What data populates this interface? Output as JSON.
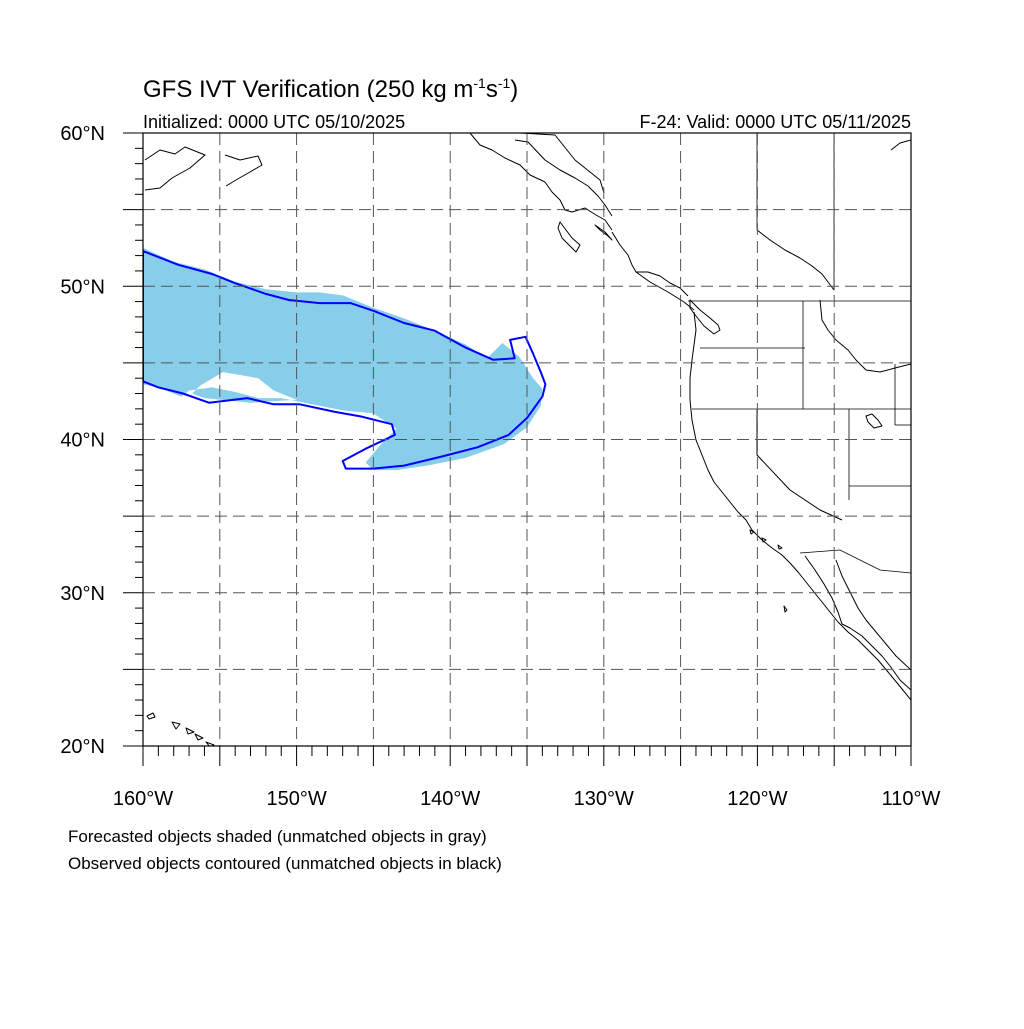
{
  "title": "GFS IVT Verification (250 kg m",
  "title_sup1": "-1",
  "title_mid": "s",
  "title_sup2": "-1",
  "title_end": ")",
  "initialized": "Initialized: 0000 UTC 05/10/2025",
  "valid": "F-24: Valid: 0000 UTC 05/11/2025",
  "footnote_1": "Forecasted objects shaded (unmatched objects in gray)",
  "footnote_2": "Observed objects contoured (unmatched objects in black)",
  "colors": {
    "forecast_shade": "#87ceeb",
    "observed_contour": "#0000ff",
    "coast": "#000000",
    "grid": "#555555"
  },
  "chart_data": {
    "type": "map",
    "projection": "lat-lon",
    "lon_range": [
      -160,
      -110
    ],
    "lat_range": [
      20,
      60
    ],
    "lon_ticks": [
      {
        "value": -160,
        "label": "160°W"
      },
      {
        "value": -150,
        "label": "150°W"
      },
      {
        "value": -140,
        "label": "140°W"
      },
      {
        "value": -130,
        "label": "130°W"
      },
      {
        "value": -120,
        "label": "120°W"
      },
      {
        "value": -110,
        "label": "110°W"
      }
    ],
    "lat_ticks": [
      {
        "value": 20,
        "label": "20°N"
      },
      {
        "value": 30,
        "label": "30°N"
      },
      {
        "value": 40,
        "label": "40°N"
      },
      {
        "value": 50,
        "label": "50°N"
      },
      {
        "value": 60,
        "label": "60°N"
      }
    ],
    "grid_spacing_deg": 5,
    "forecast_object": [
      [
        -160,
        52.5
      ],
      [
        -158,
        51.6
      ],
      [
        -156,
        51.1
      ],
      [
        -154,
        50.3
      ],
      [
        -152,
        49.8
      ],
      [
        -150,
        49.6
      ],
      [
        -148.5,
        49.6
      ],
      [
        -147,
        49.4
      ],
      [
        -145,
        48.6
      ],
      [
        -143,
        47.9
      ],
      [
        -141,
        47.1
      ],
      [
        -139,
        46.2
      ],
      [
        -137.6,
        45.3
      ],
      [
        -136.6,
        46.3
      ],
      [
        -135.5,
        45.4
      ],
      [
        -134.6,
        44.0
      ],
      [
        -134,
        43.3
      ],
      [
        -134.1,
        42.2
      ],
      [
        -135,
        40.8
      ],
      [
        -136.5,
        39.7
      ],
      [
        -139,
        38.8
      ],
      [
        -141.5,
        38.3
      ],
      [
        -143.5,
        38.0
      ],
      [
        -145,
        38.0
      ],
      [
        -145.5,
        38.5
      ],
      [
        -144.5,
        39.7
      ],
      [
        -143.5,
        40.7
      ],
      [
        -145,
        41.7
      ],
      [
        -147,
        41.9
      ],
      [
        -149,
        42.3
      ],
      [
        -151,
        42.7
      ],
      [
        -152.5,
        42.7
      ],
      [
        -154,
        43.1
      ],
      [
        -155.5,
        43.4
      ],
      [
        -157,
        43.2
      ],
      [
        -157.5,
        42.8
      ],
      [
        -159,
        43.4
      ],
      [
        -160,
        43.6
      ]
    ],
    "forecast_hole": [
      [
        -156.3,
        43.5
      ],
      [
        -154.8,
        44.4
      ],
      [
        -152.5,
        44.0
      ],
      [
        -151.5,
        43.2
      ],
      [
        -150,
        42.6
      ],
      [
        -153,
        42.4
      ],
      [
        -156,
        42.7
      ],
      [
        -156.8,
        43.0
      ]
    ],
    "observed_contour": [
      [
        -160,
        52.3
      ],
      [
        -159,
        51.9
      ],
      [
        -157.7,
        51.4
      ],
      [
        -155.5,
        50.8
      ],
      [
        -154,
        50.2
      ],
      [
        -152,
        49.5
      ],
      [
        -150.5,
        49.1
      ],
      [
        -148.5,
        48.9
      ],
      [
        -146.5,
        48.9
      ],
      [
        -145,
        48.4
      ],
      [
        -143,
        47.6
      ],
      [
        -141,
        47.1
      ],
      [
        -139,
        46.0
      ],
      [
        -137.2,
        45.2
      ],
      [
        -135.8,
        45.3
      ],
      [
        -136.1,
        46.5
      ],
      [
        -135.1,
        46.7
      ],
      [
        -134.6,
        45.6
      ],
      [
        -134.1,
        44.4
      ],
      [
        -133.8,
        43.6
      ],
      [
        -134,
        42.8
      ],
      [
        -135,
        41.4
      ],
      [
        -136.2,
        40.3
      ],
      [
        -138.2,
        39.5
      ],
      [
        -140.5,
        38.9
      ],
      [
        -143,
        38.3
      ],
      [
        -145,
        38.1
      ],
      [
        -146.8,
        38.1
      ],
      [
        -147,
        38.6
      ],
      [
        -145.5,
        39.4
      ],
      [
        -143.6,
        40.3
      ],
      [
        -143.8,
        41.0
      ],
      [
        -145.8,
        41.5
      ],
      [
        -147.5,
        41.8
      ],
      [
        -149.8,
        42.3
      ],
      [
        -151.5,
        42.3
      ],
      [
        -153.2,
        42.7
      ],
      [
        -155.7,
        42.4
      ],
      [
        -157.4,
        43.0
      ],
      [
        -159,
        43.4
      ],
      [
        -160,
        43.8
      ]
    ]
  }
}
